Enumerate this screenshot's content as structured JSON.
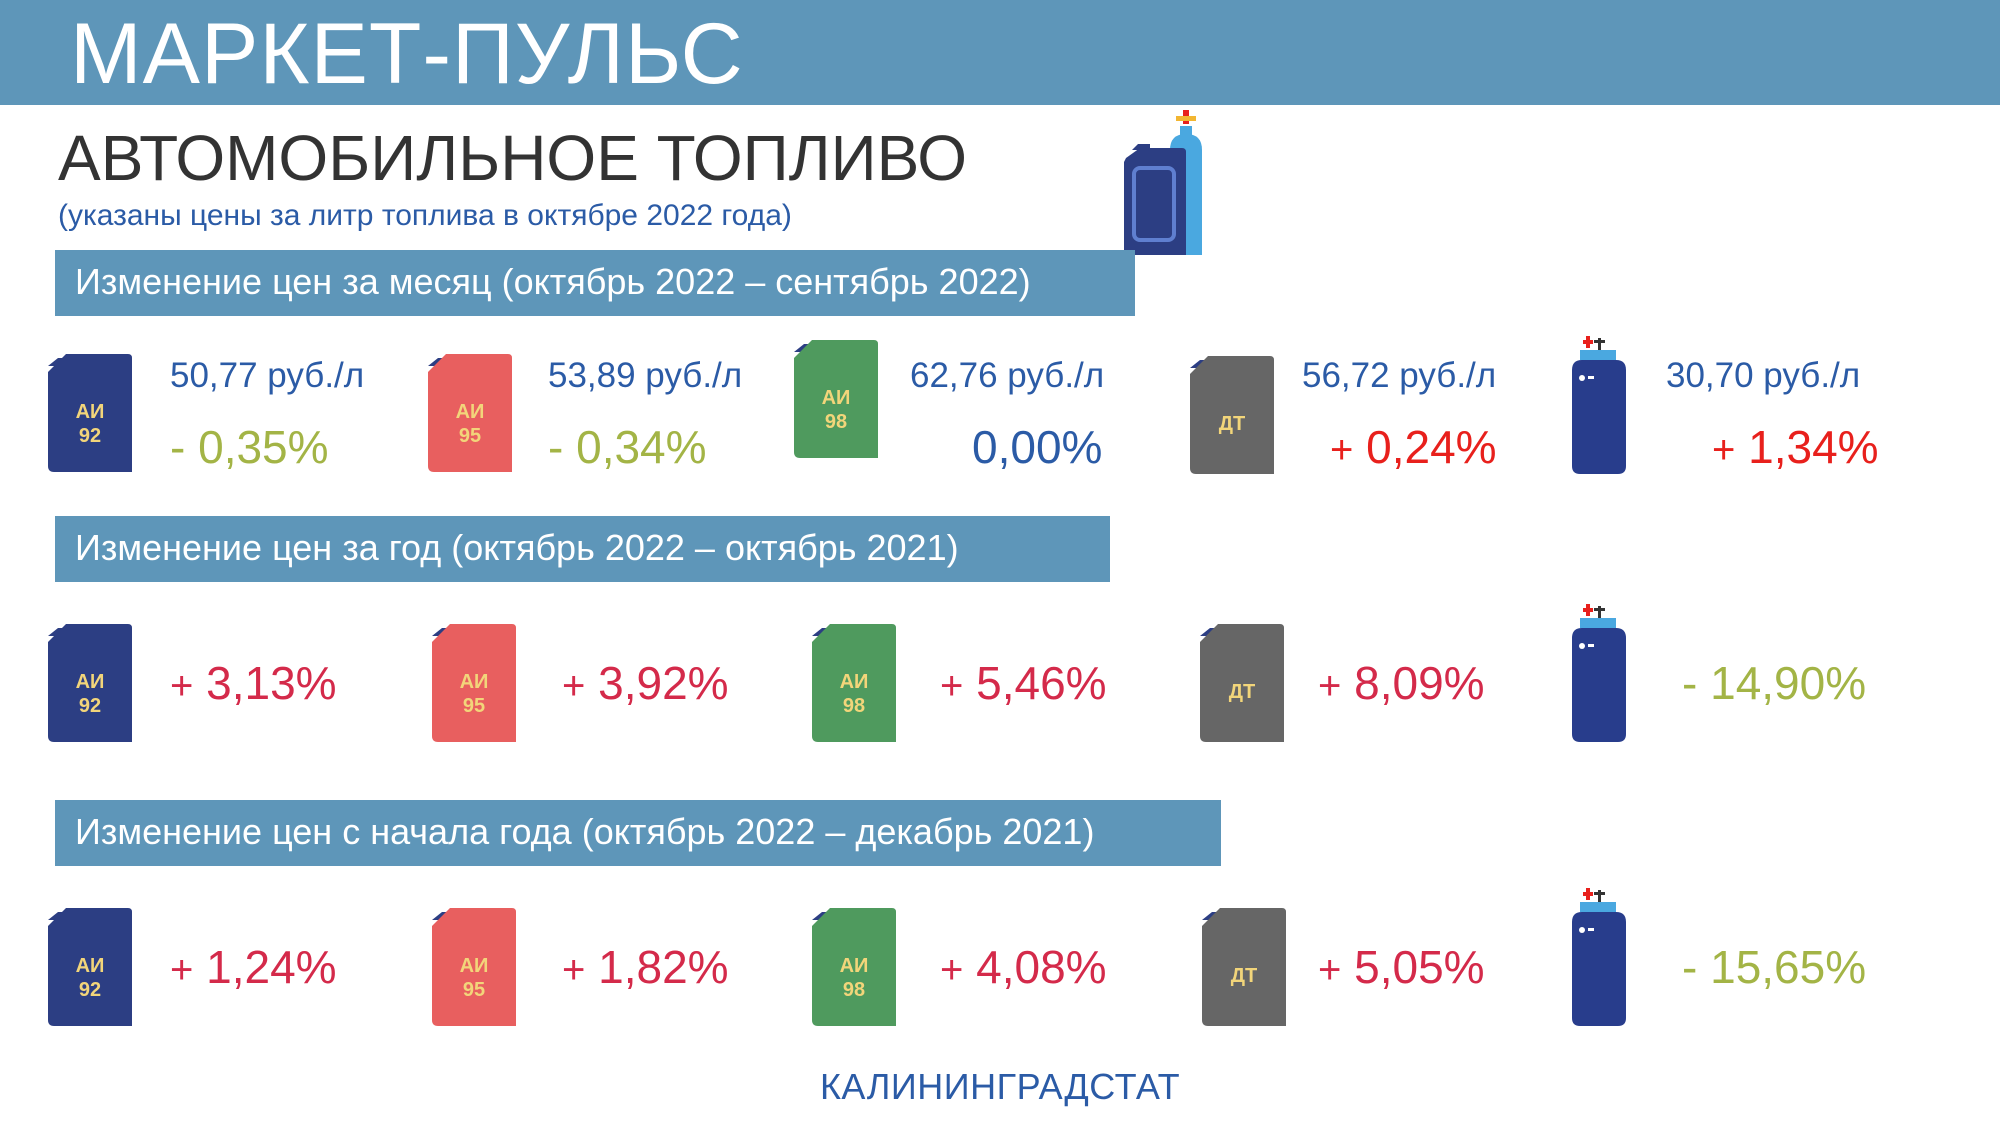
{
  "header": {
    "brand": "МАРКЕТ-ПУЛЬС"
  },
  "title": "АВТОМОБИЛЬНОЕ ТОПЛИВО",
  "subtitle": "(указаны цены за литр топлива в октябре 2022 года)",
  "colors": {
    "ai92": "#2c3e83",
    "ai95": "#e85f5f",
    "ai98": "#4f9a5e",
    "dt": "#666666",
    "gas": "#283d8c",
    "accent": "#5e96b9",
    "positive": "#d42a4a",
    "negative": "#a3b446"
  },
  "icons": {
    "ai92": {
      "name": "fuel-canister-ai92-icon",
      "line1": "АИ",
      "line2": "92"
    },
    "ai95": {
      "name": "fuel-canister-ai95-icon",
      "line1": "АИ",
      "line2": "95"
    },
    "ai98": {
      "name": "fuel-canister-ai98-icon",
      "line1": "АИ",
      "line2": "98"
    },
    "dt": {
      "name": "fuel-canister-diesel-icon",
      "line1": "ДТ"
    },
    "gas": {
      "name": "gas-cylinder-icon"
    }
  },
  "sections": {
    "month": {
      "label": "Изменение цен за месяц (октябрь 2022 – сентябрь 2022)",
      "items": [
        {
          "price": "50,77 руб./л",
          "sign": "-",
          "change": "0,35%"
        },
        {
          "price": "53,89 руб./л",
          "sign": "-",
          "change": "0,34%"
        },
        {
          "price": "62,76 руб./л",
          "sign": "",
          "change": "0,00%"
        },
        {
          "price": "56,72 руб./л",
          "sign": "+",
          "change": "0,24%"
        },
        {
          "price": "30,70 руб./л",
          "sign": "+",
          "change": "1,34%"
        }
      ]
    },
    "year": {
      "label": "Изменение цен за год (октябрь 2022 – октябрь 2021)",
      "items": [
        {
          "sign": "+",
          "change": "3,13%"
        },
        {
          "sign": "+",
          "change": "3,92%"
        },
        {
          "sign": "+",
          "change": "5,46%"
        },
        {
          "sign": "+",
          "change": "8,09%"
        },
        {
          "sign": "-",
          "change": "14,90%"
        }
      ]
    },
    "ytd": {
      "label": "Изменение цен с начала года (октябрь 2022 – декабрь 2021)",
      "items": [
        {
          "sign": "+",
          "change": "1,24%"
        },
        {
          "sign": "+",
          "change": "1,82%"
        },
        {
          "sign": "+",
          "change": "4,08%"
        },
        {
          "sign": "+",
          "change": "5,05%"
        },
        {
          "sign": "-",
          "change": "15,65%"
        }
      ]
    }
  },
  "footer": "КАЛИНИНГРАДСТАТ"
}
